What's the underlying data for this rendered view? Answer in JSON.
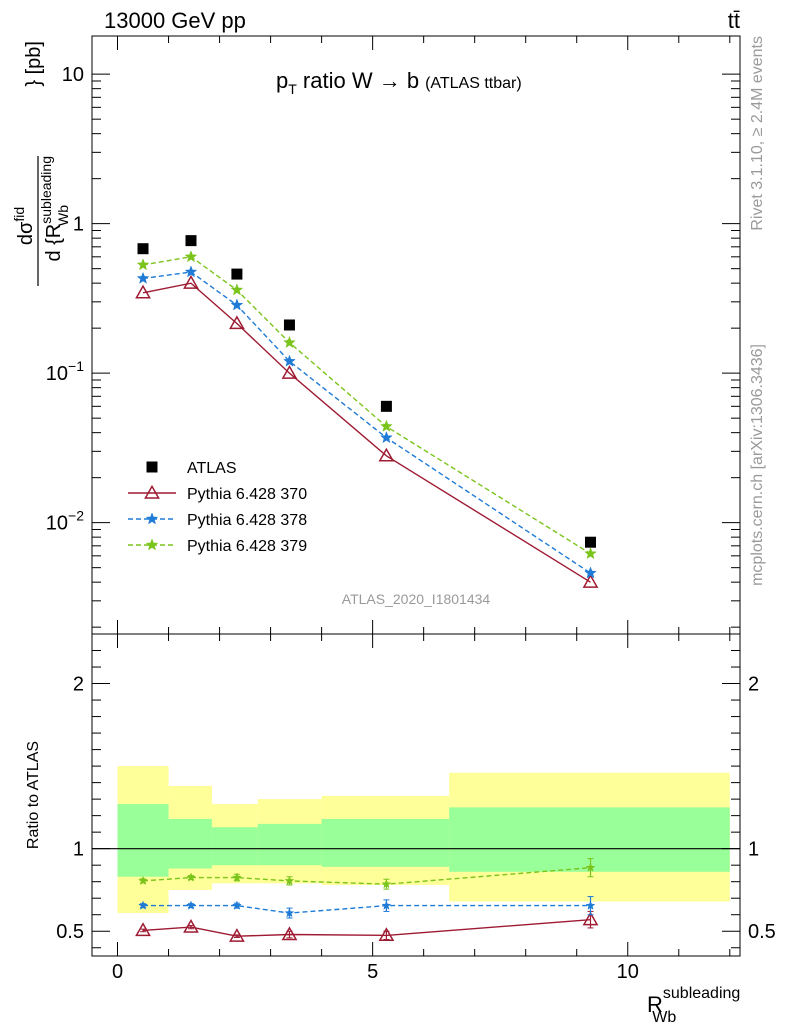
{
  "header": {
    "energy_label": "13000 GeV pp",
    "process_label": "tt̄",
    "side_events": "Rivet 3.1.10, ≥ 2.4M events",
    "side_source": "mcplots.cern.ch [arXiv:1306.3436]",
    "analysis_id": "ATLAS_2020_I1801434"
  },
  "chart_data": [
    {
      "type": "line",
      "title_main": "p",
      "title_sub": "T",
      "title_rest": " ratio W → b",
      "title_note": "(ATLAS ttbar)",
      "ylabel_num": "dσ",
      "ylabel_num_sup": "fid",
      "ylabel_den": "d {R",
      "ylabel_den_sup": "subleading",
      "ylabel_den_sub": "Wb",
      "ylabel_unit": "} [pb]",
      "yscale": "log",
      "xlim": [
        -0.5,
        12.2
      ],
      "ylim": [
        0.0018,
        18
      ],
      "yticks": [
        {
          "value": 10,
          "label": "10",
          "sup": ""
        },
        {
          "value": 1,
          "label": "1",
          "sup": ""
        },
        {
          "value": 0.1,
          "label": "10",
          "sup": "−1"
        },
        {
          "value": 0.01,
          "label": "10",
          "sup": "−2"
        }
      ],
      "legend_position": "lower-left",
      "series": [
        {
          "name": "ATLAS",
          "marker": "square",
          "color": "#000000",
          "dash": "none",
          "x": [
            0.5,
            1.44,
            2.34,
            3.37,
            5.27,
            9.27
          ],
          "y": [
            0.68,
            0.77,
            0.46,
            0.21,
            0.06,
            0.0074
          ]
        },
        {
          "name": "Pythia 6.428 370",
          "marker": "triangle",
          "color": "#9e1b32",
          "dash": "solid",
          "x": [
            0.5,
            1.44,
            2.34,
            3.37,
            5.27,
            9.27
          ],
          "y": [
            0.345,
            0.4,
            0.215,
            0.1,
            0.028,
            0.004
          ]
        },
        {
          "name": "Pythia 6.428 378",
          "marker": "star",
          "color": "#1f7bd6",
          "dash": "dashed",
          "x": [
            0.5,
            1.44,
            2.34,
            3.37,
            5.27,
            9.27
          ],
          "y": [
            0.43,
            0.475,
            0.285,
            0.12,
            0.037,
            0.0046
          ]
        },
        {
          "name": "Pythia 6.428 379",
          "marker": "star",
          "color": "#7ac41c",
          "dash": "dashed",
          "x": [
            0.5,
            1.44,
            2.34,
            3.37,
            5.27,
            9.27
          ],
          "y": [
            0.53,
            0.6,
            0.36,
            0.16,
            0.044,
            0.0062
          ]
        }
      ]
    },
    {
      "type": "line",
      "ylabel": "Ratio to ATLAS",
      "xlabel_main": "R",
      "xlabel_sup": "subleading",
      "xlabel_sub": "Wb",
      "xlim": [
        -0.5,
        12.2
      ],
      "ylim": [
        0.35,
        2.3
      ],
      "xticks": [
        0,
        5,
        10
      ],
      "yticks": [
        0.5,
        1,
        2
      ],
      "reference_line": 1,
      "bands": [
        {
          "x0": 0.0,
          "x1": 1.0,
          "inner": [
            0.83,
            1.27
          ],
          "outer": [
            0.61,
            1.5
          ]
        },
        {
          "x0": 1.0,
          "x1": 1.85,
          "inner": [
            0.88,
            1.18
          ],
          "outer": [
            0.75,
            1.38
          ]
        },
        {
          "x0": 1.85,
          "x1": 2.75,
          "inner": [
            0.9,
            1.13
          ],
          "outer": [
            0.79,
            1.27
          ]
        },
        {
          "x0": 2.75,
          "x1": 4.0,
          "inner": [
            0.9,
            1.15
          ],
          "outer": [
            0.79,
            1.3
          ]
        },
        {
          "x0": 4.0,
          "x1": 6.5,
          "inner": [
            0.89,
            1.18
          ],
          "outer": [
            0.78,
            1.32
          ]
        },
        {
          "x0": 6.5,
          "x1": 12.0,
          "inner": [
            0.86,
            1.25
          ],
          "outer": [
            0.68,
            1.46
          ]
        }
      ],
      "series": [
        {
          "name": "Pythia 6.428 370",
          "marker": "triangle",
          "color": "#9e1b32",
          "dash": "solid",
          "x": [
            0.5,
            1.44,
            2.34,
            3.37,
            5.27,
            9.27
          ],
          "y": [
            0.505,
            0.525,
            0.47,
            0.48,
            0.475,
            0.57
          ],
          "err": [
            0.008,
            0.01,
            0.008,
            0.02,
            0.025,
            0.05
          ]
        },
        {
          "name": "Pythia 6.428 378",
          "marker": "star",
          "color": "#1f7bd6",
          "dash": "dashed",
          "x": [
            0.5,
            1.44,
            2.34,
            3.37,
            5.27,
            9.27
          ],
          "y": [
            0.655,
            0.655,
            0.655,
            0.61,
            0.655,
            0.655
          ],
          "err": [
            0.012,
            0.012,
            0.015,
            0.03,
            0.035,
            0.055
          ]
        },
        {
          "name": "Pythia 6.428 379",
          "marker": "star",
          "color": "#7ac41c",
          "dash": "dashed",
          "x": [
            0.5,
            1.44,
            2.34,
            3.37,
            5.27,
            9.27
          ],
          "y": [
            0.805,
            0.825,
            0.825,
            0.805,
            0.785,
            0.885
          ],
          "err": [
            0.012,
            0.012,
            0.02,
            0.025,
            0.03,
            0.055
          ]
        }
      ]
    }
  ]
}
